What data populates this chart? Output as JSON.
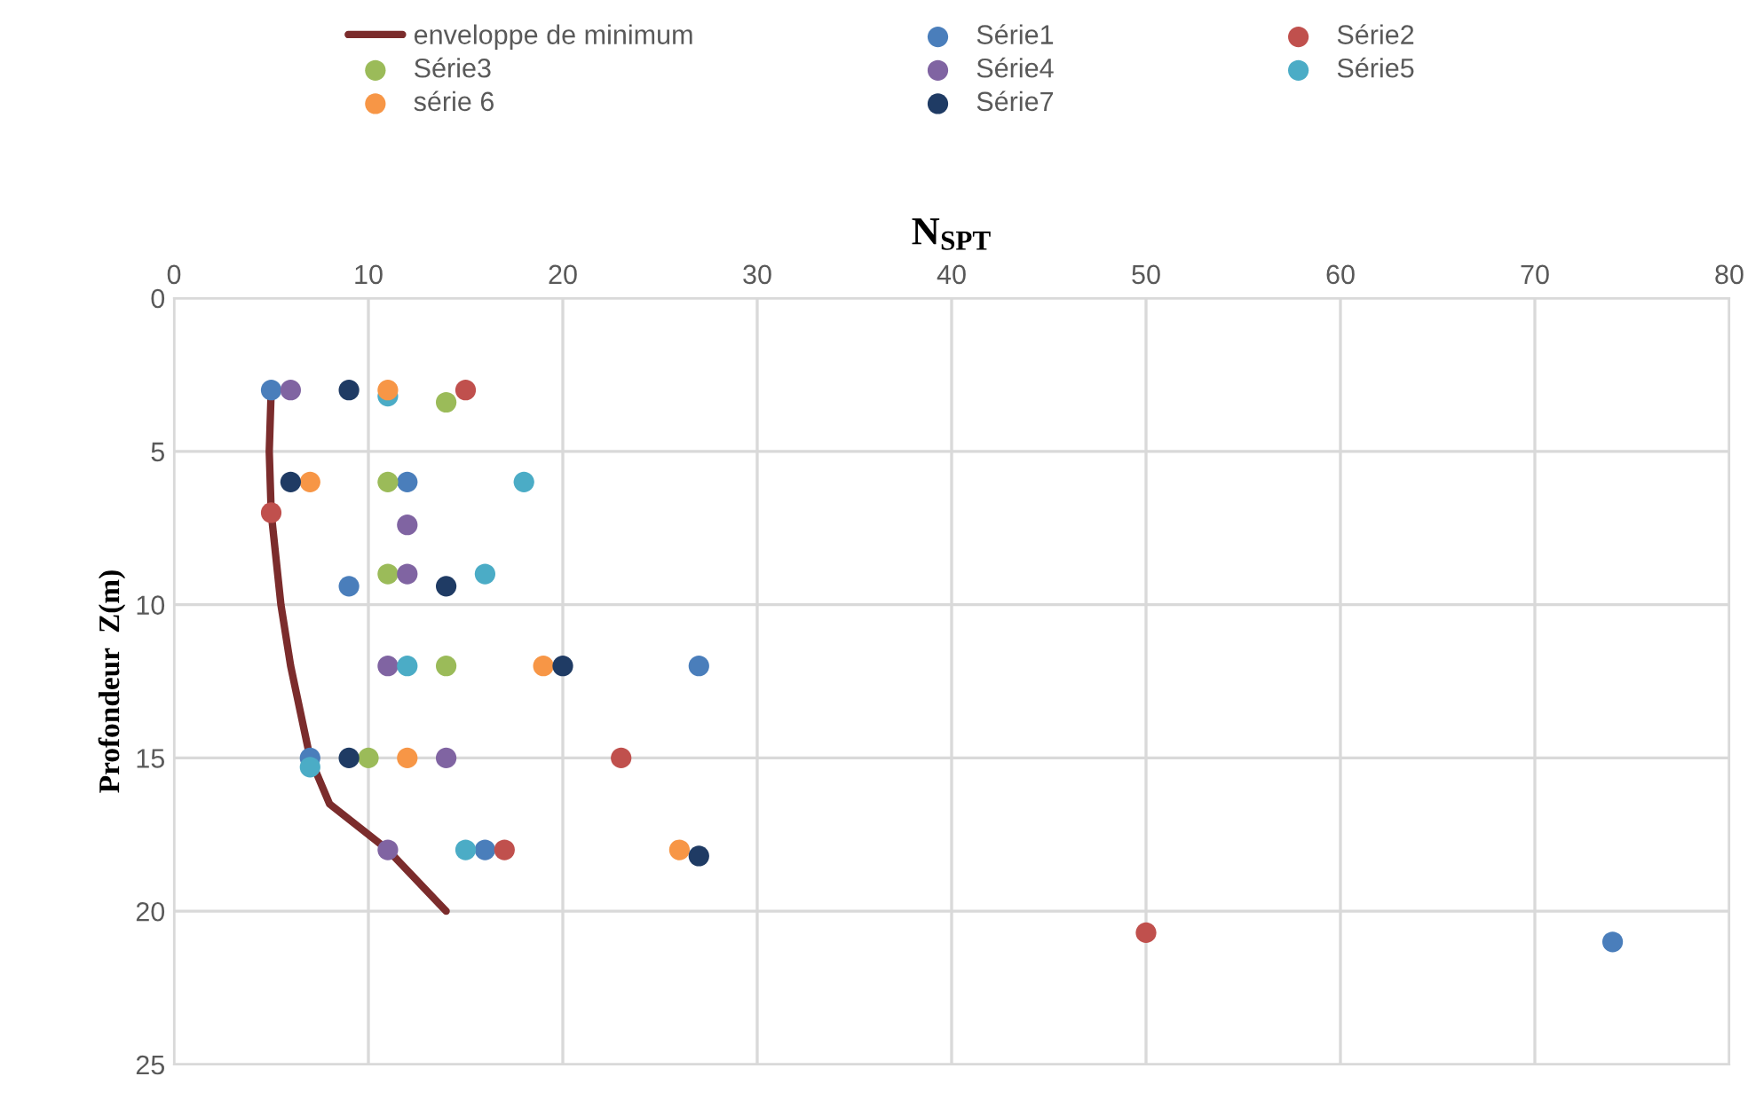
{
  "chart_data": {
    "type": "scatter",
    "xlabel": "N$_{SPT}$",
    "ylabel": "Profondeur  Z(m)",
    "xlim": [
      0,
      80
    ],
    "xticks": [
      0,
      10,
      20,
      30,
      40,
      50,
      60,
      70,
      80
    ],
    "ylim": [
      25,
      0
    ],
    "yticks": [
      0,
      5,
      10,
      15,
      20,
      25
    ],
    "grid": true,
    "legend": "top",
    "marker": "circle",
    "series": [
      {
        "name": "enveloppe de minimum",
        "type": "line",
        "marker": "none",
        "color": "#7b2c2c",
        "x": [
          5,
          4.9,
          5,
          5.5,
          6,
          7,
          8,
          10,
          11,
          14
        ],
        "values": [
          3,
          5,
          7,
          10,
          12,
          15,
          16.5,
          17.5,
          18,
          20
        ]
      },
      {
        "name": "Série1",
        "color": "#4a7ebb",
        "x": [
          5,
          12,
          9,
          27,
          7,
          16,
          74
        ],
        "values": [
          3,
          6,
          9.4,
          12,
          15,
          18,
          21
        ]
      },
      {
        "name": "Série2",
        "color": "#c0504d",
        "x": [
          15,
          5,
          23,
          17,
          50
        ],
        "values": [
          3,
          7,
          15,
          18,
          20.7
        ]
      },
      {
        "name": "Série3",
        "color": "#9bbb59",
        "x": [
          14,
          11,
          11,
          14,
          10
        ],
        "values": [
          3.4,
          6,
          9,
          12,
          15
        ]
      },
      {
        "name": "Série4",
        "color": "#8064a2",
        "x": [
          6,
          12,
          12,
          11,
          14,
          11
        ],
        "values": [
          3,
          7.4,
          9,
          12,
          15,
          18
        ]
      },
      {
        "name": "Série5",
        "color": "#4bacc6",
        "x": [
          11,
          18,
          16,
          12,
          7,
          15
        ],
        "values": [
          3.2,
          6,
          9,
          12,
          15.3,
          18
        ]
      },
      {
        "name": "série 6",
        "color": "#f79646",
        "x": [
          11,
          7,
          19,
          12,
          26
        ],
        "values": [
          3,
          6,
          12,
          15,
          18
        ]
      },
      {
        "name": "Série7",
        "color": "#1f3b64",
        "x": [
          9,
          6,
          14,
          20,
          9,
          27
        ],
        "values": [
          3,
          6,
          9.4,
          12,
          15,
          18.2
        ]
      }
    ]
  }
}
